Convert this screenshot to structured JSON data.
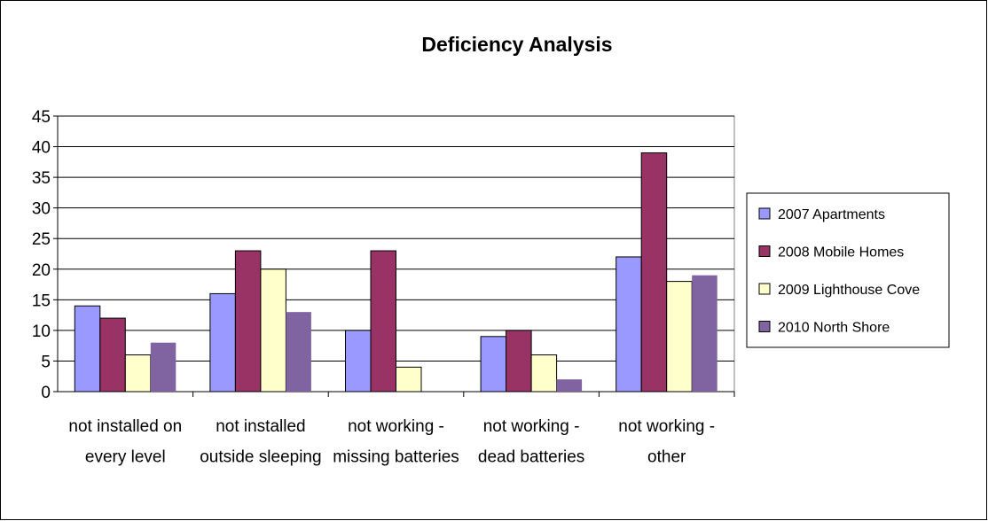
{
  "chart_data": {
    "type": "bar",
    "title": "Deficiency Analysis",
    "categories": [
      "not installed on every level",
      "not installed outside sleeping",
      "not working - missing batteries",
      "not working - dead batteries",
      "not working - other"
    ],
    "series": [
      {
        "name": "2007 Apartments",
        "color": "#9999ff",
        "values": [
          14,
          16,
          10,
          9,
          22
        ]
      },
      {
        "name": "2008 Mobile Homes",
        "color": "#993366",
        "values": [
          12,
          23,
          23,
          10,
          39
        ]
      },
      {
        "name": "2009 Lighthouse Cove",
        "color": "#ffffcc",
        "values": [
          6,
          20,
          4,
          6,
          18
        ]
      },
      {
        "name": "2010 North Shore",
        "color": "#8064a2",
        "values": [
          8,
          13,
          0,
          2,
          19
        ]
      }
    ],
    "ylim": [
      0,
      45
    ],
    "yticks": [
      0,
      5,
      10,
      15,
      20,
      25,
      30,
      35,
      40,
      45
    ],
    "grid": true,
    "legend": "right"
  }
}
